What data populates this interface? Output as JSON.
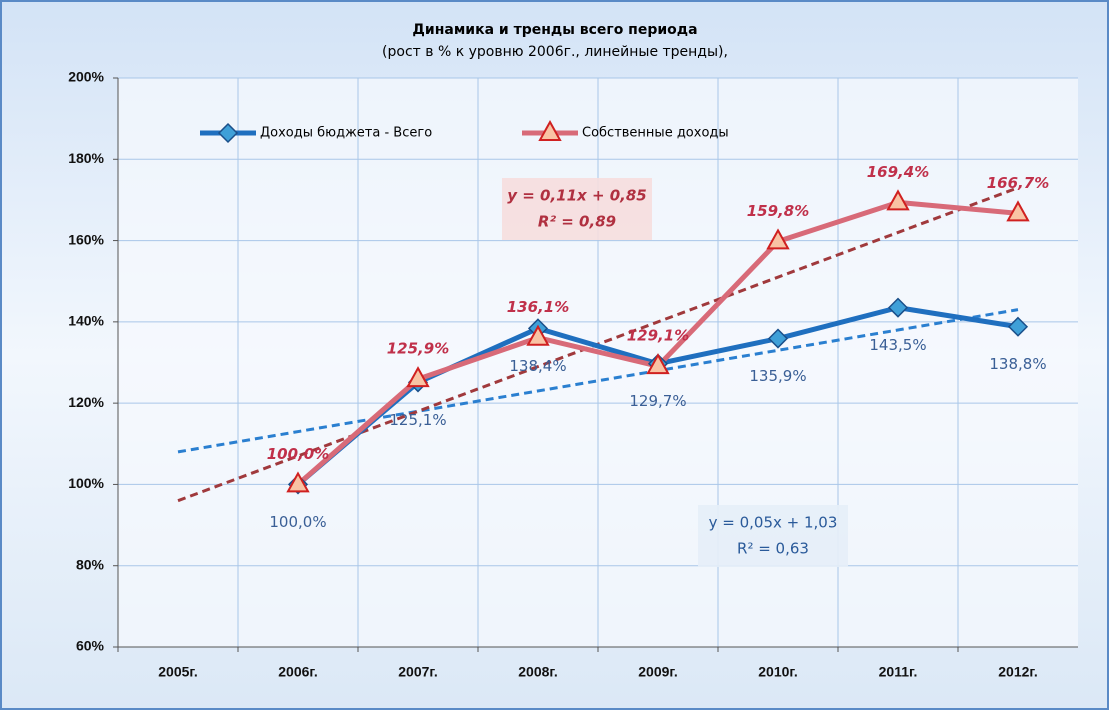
{
  "chart_data": {
    "type": "line",
    "title": "Динамика и тренды всего периода",
    "subtitle": "(рост  в % к уровню 2006г., линейные тренды),",
    "categories": [
      "2005г.",
      "2006г.",
      "2007г.",
      "2008г.",
      "2009г.",
      "2010г.",
      "2011г.",
      "2012г."
    ],
    "series": [
      {
        "name": "Доходы бюджета - Всего",
        "color": "#1f6fbf",
        "marker_color": "#3fa0d8",
        "marker": "diamond",
        "values": [
          null,
          100.0,
          125.1,
          138.4,
          129.7,
          135.9,
          143.5,
          138.8
        ],
        "value_labels": [
          null,
          "100,0%",
          "125,1%",
          "138,4%",
          "129,7%",
          "135,9%",
          "143,5%",
          "138,8%"
        ]
      },
      {
        "name": "Собственные доходы",
        "color": "#d86a78",
        "marker_color": "#f9c3a4",
        "marker": "triangle",
        "values": [
          null,
          100.0,
          125.9,
          136.1,
          129.1,
          159.8,
          169.4,
          166.7
        ],
        "value_labels": [
          null,
          "100,0%",
          "125,9%",
          "136,1%",
          "129,1%",
          "159,8%",
          "169,4%",
          "166,7%"
        ]
      }
    ],
    "trendlines": [
      {
        "series": 0,
        "color": "#2a7fd0",
        "slope": 5,
        "intercept": 103,
        "equation": "y = 0,05x + 1,03",
        "r2": "R² = 0,63"
      },
      {
        "series": 1,
        "color": "#a0393c",
        "slope": 11,
        "intercept": 85,
        "equation": "y = 0,11x + 0,85",
        "r2": "R² = 0,89"
      }
    ],
    "ylim": [
      60,
      200
    ],
    "yticks": [
      {
        "value": 60,
        "label": "60%"
      },
      {
        "value": 80,
        "label": "80%"
      },
      {
        "value": 100,
        "label": "100%"
      },
      {
        "value": 120,
        "label": "120%"
      },
      {
        "value": 140,
        "label": "140%"
      },
      {
        "value": 160,
        "label": "160%"
      },
      {
        "value": 180,
        "label": "180%"
      },
      {
        "value": 200,
        "label": "200%"
      }
    ],
    "grid": true,
    "legend": "top-left"
  }
}
